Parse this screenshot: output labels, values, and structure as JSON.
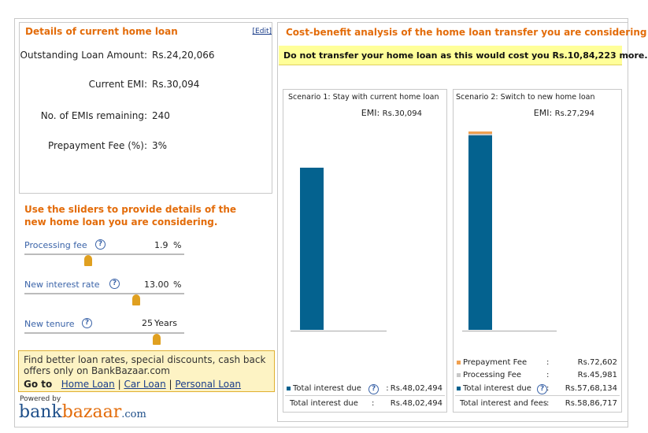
{
  "current_loan": {
    "title": "Details of current home loan",
    "edit_label": "[Edit]",
    "rows": [
      {
        "label": "Outstanding Loan Amount:",
        "value": "Rs.24,20,066"
      },
      {
        "label": "Current EMI:",
        "value": "Rs.30,094"
      },
      {
        "label": "No. of EMIs remaining:",
        "value": "240"
      },
      {
        "label": "Prepayment Fee (%):",
        "value": "3%"
      }
    ]
  },
  "sliders": {
    "title": "Use the sliders to provide details of the new home loan you are considering.",
    "items": [
      {
        "label": "Processing fee",
        "value": "1.9",
        "unit": "%",
        "level": 0.4
      },
      {
        "label": "New interest rate",
        "value": "13.00",
        "unit": "%",
        "level": 0.7
      },
      {
        "label": "New tenure",
        "value": "25",
        "unit": "Years",
        "level": 0.83
      }
    ]
  },
  "promo": {
    "text": "Find better loan rates, special discounts, cash back offers only on BankBazaar.com",
    "goto_label": "Go to",
    "links": [
      "Home Loan",
      "Car Loan",
      "Personal Loan"
    ],
    "separator": "|"
  },
  "brand": {
    "powered_by": "Powered by",
    "logo_part1": "bank",
    "logo_part2": "bazaar",
    "logo_part3": ".com"
  },
  "analysis": {
    "title": "Cost-benefit analysis of the home loan transfer you are considering",
    "recommendation": "Do not transfer your home loan as this would cost you Rs.10,84,223 more."
  },
  "scenario1": {
    "title": "Scenario 1: Stay with current home loan",
    "emi_label": "EMI:",
    "emi_value": "Rs.30,094",
    "legend": [
      {
        "label": "Total interest due",
        "sep": ":",
        "value": "Rs.48,02,494"
      }
    ],
    "total_label": "Total interest due",
    "total_sep": ":",
    "total_value": "Rs.48,02,494"
  },
  "scenario2": {
    "title": "Scenario 2: Switch to new home loan",
    "emi_label": "EMI:",
    "emi_value": "Rs.27,294",
    "legend": [
      {
        "label": "Prepayment Fee",
        "sep": ":",
        "value": "Rs.72,602"
      },
      {
        "label": "Processing Fee",
        "sep": ":",
        "value": "Rs.45,981"
      },
      {
        "label": "Total interest due",
        "sep": ":",
        "value": "Rs.57,68,134"
      }
    ],
    "total_label": "Total interest and fees",
    "total_sep": ":",
    "total_value": "Rs.58,86,717"
  },
  "chart_data": {
    "type": "bar",
    "stacked": true,
    "categories": [
      "Scenario 1",
      "Scenario 2"
    ],
    "series": [
      {
        "name": "Total interest due",
        "values": [
          4802494,
          5768134
        ]
      },
      {
        "name": "Processing Fee",
        "values": [
          0,
          45981
        ]
      },
      {
        "name": "Prepayment Fee",
        "values": [
          0,
          72602
        ]
      }
    ],
    "ymax": 5886717,
    "colors": {
      "Total interest due": "#04628f",
      "Processing Fee": "#c8c8c8",
      "Prepayment Fee": "#f0a050"
    }
  },
  "colors": {
    "accent": "#e36c0a",
    "bar": "#04628f",
    "promo_bg": "#fdf3c4",
    "reco_bg": "#ffff99"
  }
}
